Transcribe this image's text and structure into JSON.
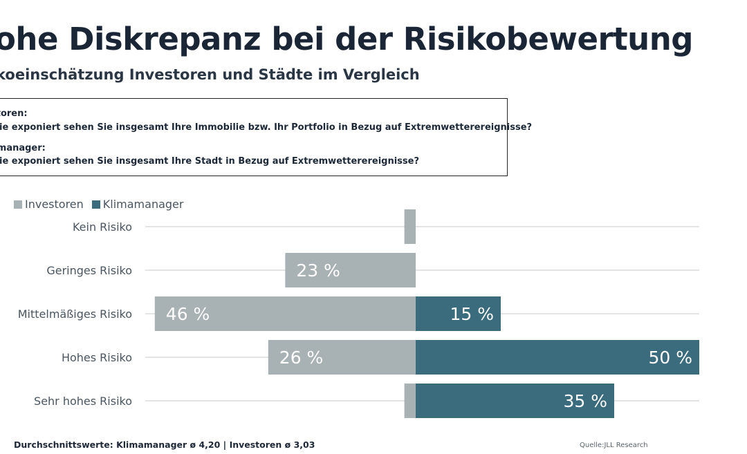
{
  "header": {
    "title": "ohe Diskrepanz bei der Risikobewertung",
    "subtitle": "koeinschätzung Investoren und Städte im Vergleich"
  },
  "questions": {
    "investor_label": "storen:",
    "investor_question": "wie exponiert sehen Sie insgesamt Ihre Immobilie bzw. Ihr Portfolio in Bezug auf Extremwetterereignisse?",
    "manager_label": "amanager:",
    "manager_question": "wie exponiert sehen Sie insgesamt Ihre Stadt in Bezug auf Extremwetterereignisse?"
  },
  "footer": {
    "averages": "Durchschnittswerte: Klimamanager ø 4,20 | Investoren ø 3,03",
    "source": "Quelle:JLL Research"
  },
  "colors": {
    "investoren": "#a8b1b3",
    "klimamanager": "#3a6c7e",
    "gridline": "#d0d4d6",
    "category_text": "#4a5560"
  },
  "chart_data": {
    "type": "bar",
    "orientation": "horizontal-diverging",
    "categories": [
      "Kein Risiko",
      "Geringes Risiko",
      "Mittelmäßiges Risiko",
      "Hohes Risiko",
      "Sehr hohes Risiko"
    ],
    "series": [
      {
        "name": "Investoren",
        "values": [
          2,
          23,
          46,
          26,
          2
        ],
        "labels": [
          "",
          "23 %",
          "46 %",
          "26 %",
          ""
        ],
        "direction": "left"
      },
      {
        "name": "Klimamanager",
        "values": [
          0,
          0,
          15,
          50,
          35
        ],
        "labels": [
          "",
          "",
          "15 %",
          "50 %",
          "35 %"
        ],
        "direction": "right"
      }
    ],
    "xlim": [
      -50,
      50
    ],
    "unit": "%",
    "grid": true,
    "legend_position": "top-left"
  }
}
